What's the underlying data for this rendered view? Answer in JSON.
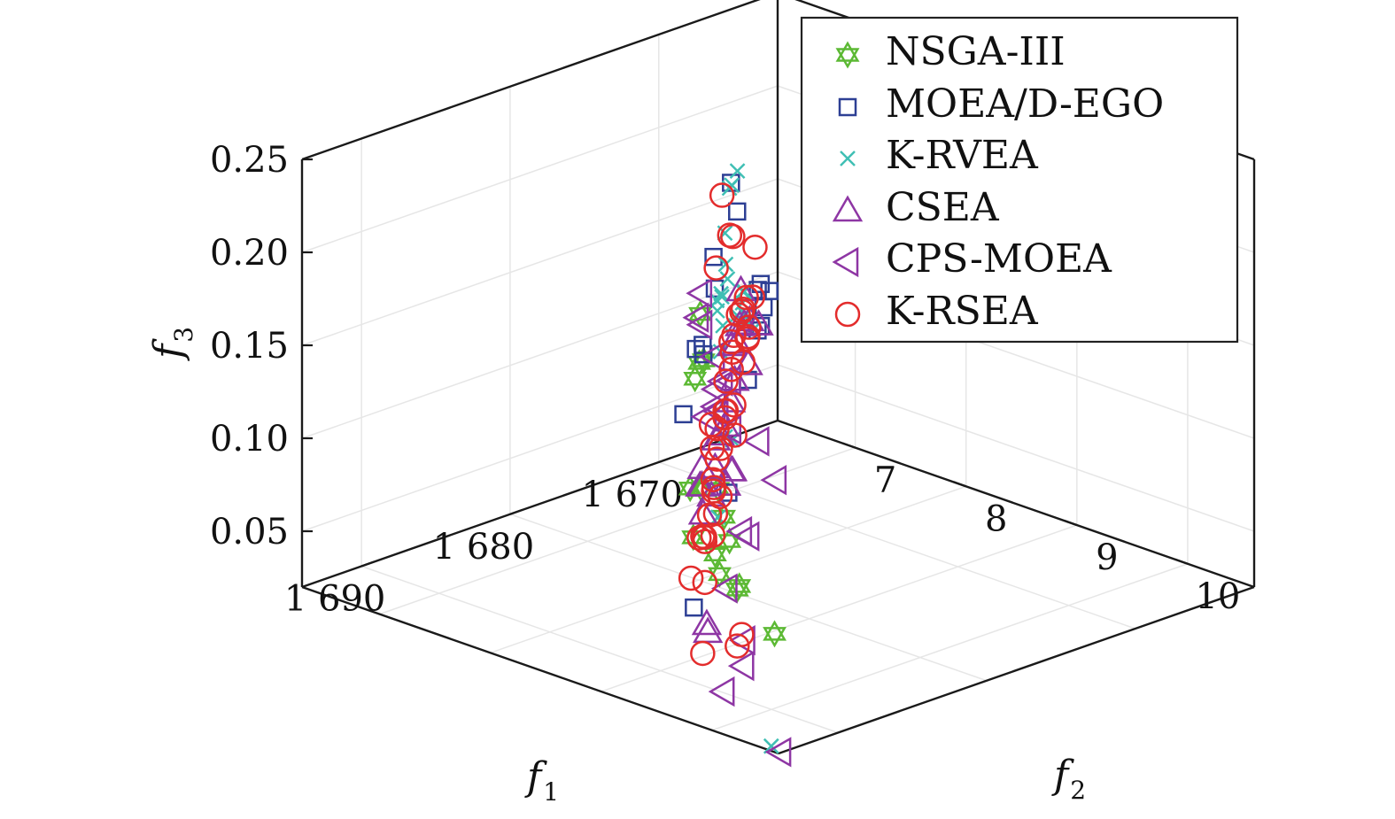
{
  "chart_data": {
    "type": "scatter",
    "projection": "3d",
    "title": "",
    "xlabel": "f",
    "xlabel_sub": "1",
    "ylabel": "f",
    "ylabel_sub": "2",
    "zlabel": "f",
    "zlabel_sub": "3",
    "xlim": [
      1662,
      1694
    ],
    "ylim": [
      6.3,
      10.6
    ],
    "zlim": [
      0.02,
      0.25
    ],
    "x_ticks": [
      "1 670",
      "1 680",
      "1 690"
    ],
    "x_tick_values": [
      1670,
      1680,
      1690
    ],
    "y_ticks": [
      "7",
      "8",
      "9",
      "10"
    ],
    "y_tick_values": [
      7,
      8,
      9,
      10
    ],
    "z_ticks": [
      "0.05",
      "0.10",
      "0.15",
      "0.20",
      "0.25"
    ],
    "z_tick_values": [
      0.05,
      0.1,
      0.15,
      0.2,
      0.25
    ],
    "grid": true,
    "legend_position": "top-right",
    "series": [
      {
        "name": "NSGA-III",
        "marker": "hexagram",
        "color": "#5cb934",
        "points": [
          [
            1681.9,
            8.27,
            0.174
          ],
          [
            1680.7,
            8.14,
            0.143
          ],
          [
            1681.5,
            8.17,
            0.136
          ],
          [
            1683.6,
            8.49,
            0.157
          ],
          [
            1685.1,
            8.71,
            0.098
          ],
          [
            1683.1,
            8.34,
            0.085
          ],
          [
            1686.5,
            9.05,
            0.109
          ],
          [
            1687.0,
            9.17,
            0.098
          ],
          [
            1688.8,
            9.46,
            0.096
          ],
          [
            1688.2,
            9.29,
            0.073
          ],
          [
            1690.0,
            9.69,
            0.078
          ],
          [
            1685.2,
            8.65,
            0.071
          ],
          [
            1690.3,
            9.75,
            0.082
          ],
          [
            1693.0,
            10.43,
            0.078
          ],
          [
            1688.8,
            9.33,
            0.086
          ]
        ]
      },
      {
        "name": "MOEA/D-EGO",
        "marker": "square",
        "color": "#2d3f94",
        "points": [
          [
            1672.0,
            7.22,
            0.195
          ],
          [
            1673.3,
            7.45,
            0.188
          ],
          [
            1673.1,
            7.21,
            0.158
          ],
          [
            1680.4,
            8.03,
            0.146
          ],
          [
            1679.5,
            8.08,
            0.177
          ],
          [
            1683.0,
            8.44,
            0.164
          ],
          [
            1683.7,
            8.36,
            0.127
          ],
          [
            1682.8,
            8.42,
            0.158
          ],
          [
            1667.6,
            6.87,
            0.096
          ],
          [
            1666.6,
            6.79,
            0.104
          ],
          [
            1667.7,
            6.99,
            0.12
          ],
          [
            1667.6,
            6.9,
            0.099
          ],
          [
            1669.6,
            7.14,
            0.129
          ],
          [
            1672.5,
            7.44,
            0.095
          ],
          [
            1676.5,
            7.8,
            0.053
          ],
          [
            1687.1,
            8.91,
            0.044
          ],
          [
            1670.0,
            7.22,
            0.135
          ]
        ]
      },
      {
        "name": "K-RVEA",
        "marker": "x",
        "color": "#3fbfb4",
        "points": [
          [
            1674.4,
            7.6,
            0.216
          ],
          [
            1675.6,
            7.71,
            0.214
          ],
          [
            1676.5,
            7.81,
            0.217
          ],
          [
            1677.4,
            7.89,
            0.197
          ],
          [
            1677.6,
            7.94,
            0.174
          ],
          [
            1678.8,
            8.05,
            0.17
          ],
          [
            1679.6,
            8.15,
            0.176
          ],
          [
            1680.3,
            8.21,
            0.17
          ],
          [
            1680.3,
            8.26,
            0.163
          ],
          [
            1680.9,
            8.32,
            0.152
          ],
          [
            1680.4,
            8.22,
            0.176
          ],
          [
            1672.5,
            7.24,
            0.153
          ],
          [
            1668.3,
            6.93,
            0.1
          ],
          [
            1669.4,
            7.02,
            0.11
          ],
          [
            1671.9,
            7.31,
            0.132
          ],
          [
            1672.6,
            7.43,
            0.13
          ],
          [
            1671.3,
            7.18,
            0.121
          ],
          [
            1670.2,
            7.1,
            0.129
          ],
          [
            1675.4,
            7.69,
            0.076
          ],
          [
            1680.1,
            8.19,
            0.058
          ],
          [
            1693.0,
            10.4,
            0.017
          ],
          [
            1676.4,
            7.76,
            0.082
          ],
          [
            1671.5,
            7.26,
            0.136
          ]
        ]
      },
      {
        "name": "CSEA",
        "marker": "triangle-up",
        "color": "#8e36a4",
        "points": [
          [
            1672.9,
            7.43,
            0.144
          ],
          [
            1673.8,
            7.54,
            0.13
          ],
          [
            1674.2,
            7.52,
            0.12
          ],
          [
            1674.5,
            7.61,
            0.124
          ],
          [
            1676.0,
            7.79,
            0.112
          ],
          [
            1677.3,
            7.93,
            0.107
          ],
          [
            1679.6,
            8.14,
            0.1
          ],
          [
            1679.5,
            8.09,
            0.096
          ],
          [
            1680.6,
            8.23,
            0.087
          ],
          [
            1681.7,
            8.27,
            0.066
          ],
          [
            1682.6,
            8.38,
            0.086
          ],
          [
            1683.4,
            8.47,
            0.09
          ],
          [
            1680.4,
            8.17,
            0.07
          ],
          [
            1678.5,
            8.05,
            0.068
          ],
          [
            1677.5,
            7.96,
            0.071
          ],
          [
            1676.0,
            7.77,
            0.063
          ],
          [
            1670.1,
            7.12,
            0.09
          ],
          [
            1667.9,
            6.92,
            0.101
          ],
          [
            1669.4,
            7.04,
            0.11
          ],
          [
            1672.6,
            7.42,
            0.125
          ],
          [
            1677.7,
            7.93,
            0.095
          ],
          [
            1687.2,
            9.04,
            0.038
          ],
          [
            1687.2,
            9.05,
            0.034
          ],
          [
            1682.9,
            8.42,
            0.097
          ]
        ]
      },
      {
        "name": "CPS-MOEA",
        "marker": "triangle-left",
        "color": "#8e36a4",
        "points": [
          [
            1681.3,
            8.2,
            0.182
          ],
          [
            1682.5,
            8.33,
            0.175
          ],
          [
            1683.6,
            8.51,
            0.178
          ],
          [
            1684.1,
            8.69,
            0.166
          ],
          [
            1685.5,
            8.95,
            0.162
          ],
          [
            1686.2,
            8.98,
            0.151
          ],
          [
            1683.6,
            8.64,
            0.146
          ],
          [
            1683.9,
            8.81,
            0.155
          ],
          [
            1684.6,
            8.79,
            0.14
          ],
          [
            1685.6,
            9.04,
            0.138
          ],
          [
            1687.0,
            9.48,
            0.145
          ],
          [
            1688.0,
            9.77,
            0.133
          ],
          [
            1689.8,
            9.7,
            0.109
          ],
          [
            1686.1,
            9.27,
            0.087
          ],
          [
            1687.2,
            9.22,
            0.061
          ],
          [
            1690.7,
            9.84,
            0.042
          ],
          [
            1690.7,
            9.85,
            0.056
          ],
          [
            1690.6,
            9.65,
            0.024
          ],
          [
            1693.8,
            10.59,
            0.02
          ],
          [
            1683.0,
            8.47,
            0.126
          ]
        ]
      },
      {
        "name": "K-RSEA",
        "marker": "circle",
        "color": "#e32c2c",
        "points": [
          [
            1673.5,
            7.34,
            0.195
          ],
          [
            1674.4,
            7.53,
            0.18
          ],
          [
            1672.1,
            7.25,
            0.167
          ],
          [
            1672.1,
            7.1,
            0.147
          ],
          [
            1675.6,
            7.92,
            0.185
          ],
          [
            1678.0,
            8.05,
            0.147
          ],
          [
            1680.5,
            8.36,
            0.157
          ],
          [
            1681.0,
            8.43,
            0.145
          ],
          [
            1681.6,
            8.33,
            0.115
          ],
          [
            1666.8,
            6.67,
            0.085
          ],
          [
            1668.7,
            6.93,
            0.097
          ],
          [
            1670.6,
            7.14,
            0.093
          ],
          [
            1672.7,
            7.34,
            0.08
          ],
          [
            1674.5,
            7.59,
            0.074
          ],
          [
            1677.2,
            7.76,
            0.055
          ],
          [
            1678.4,
            7.98,
            0.06
          ],
          [
            1679.3,
            8.06,
            0.055
          ],
          [
            1681.3,
            8.18,
            0.05
          ],
          [
            1683.6,
            8.54,
            0.04
          ],
          [
            1687.1,
            8.99,
            0.021
          ],
          [
            1685.8,
            8.71,
            0.052
          ],
          [
            1683.6,
            8.54,
            0.062
          ],
          [
            1682.1,
            8.32,
            0.056
          ],
          [
            1680.9,
            8.22,
            0.062
          ],
          [
            1679.2,
            8.06,
            0.084
          ],
          [
            1678.8,
            7.97,
            0.07
          ],
          [
            1677.7,
            7.89,
            0.082
          ],
          [
            1676.2,
            7.73,
            0.091
          ],
          [
            1676.2,
            7.74,
            0.095
          ],
          [
            1678.6,
            7.98,
            0.097
          ],
          [
            1679.0,
            7.99,
            0.088
          ],
          [
            1670.8,
            7.22,
            0.114
          ],
          [
            1669.1,
            6.97,
            0.12
          ],
          [
            1670.6,
            7.13,
            0.12
          ],
          [
            1672.1,
            7.3,
            0.126
          ],
          [
            1673.4,
            7.42,
            0.112
          ],
          [
            1674.8,
            7.55,
            0.103
          ],
          [
            1676.8,
            7.81,
            0.098
          ],
          [
            1680.6,
            8.22,
            0.076
          ],
          [
            1684.8,
            8.7,
            0.071
          ],
          [
            1672.3,
            7.37,
            0.131
          ],
          [
            1670.1,
            7.16,
            0.127
          ],
          [
            1688.8,
            9.57,
            0.048
          ],
          [
            1689.7,
            9.65,
            0.046
          ],
          [
            1683.8,
            8.64,
            0.068
          ]
        ]
      }
    ]
  },
  "legend": {
    "items": [
      {
        "label": "NSGA-III"
      },
      {
        "label": "MOEA/D-EGO"
      },
      {
        "label": "K-RVEA"
      },
      {
        "label": "CSEA"
      },
      {
        "label": "CPS-MOEA"
      },
      {
        "label": "K-RSEA"
      }
    ]
  }
}
